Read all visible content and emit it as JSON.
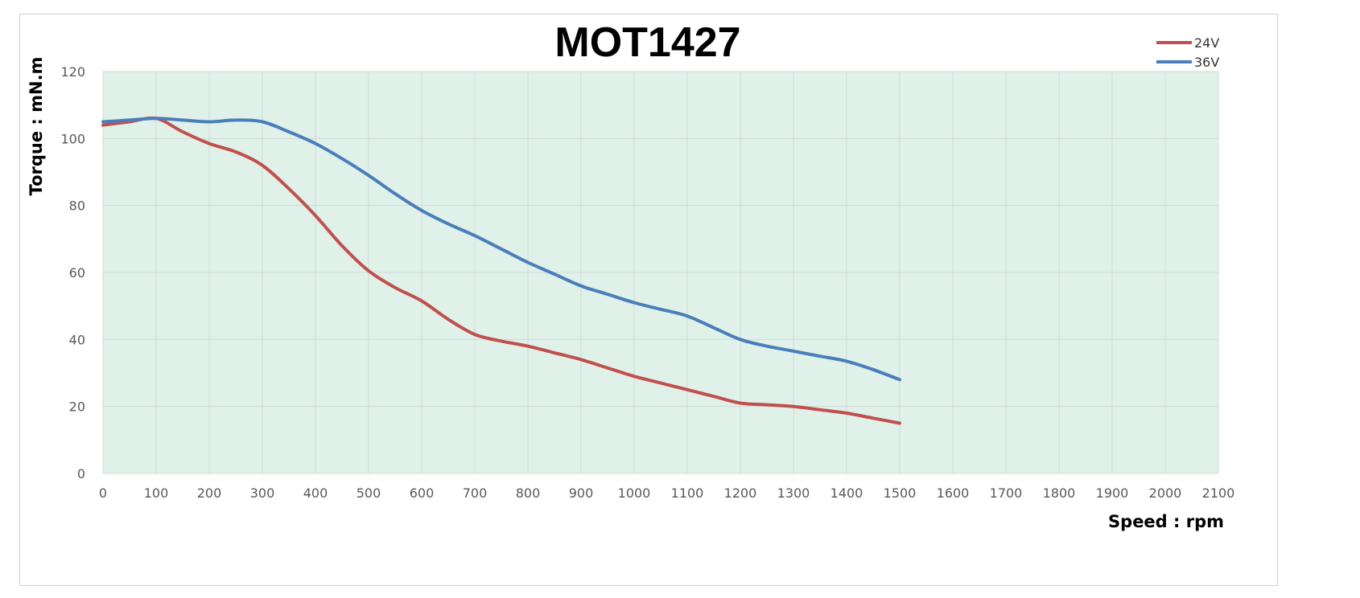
{
  "chart_data": {
    "type": "line",
    "title": "MOT1427",
    "xlabel": "Speed : rpm",
    "ylabel": "Torque : mN.m",
    "xlim": [
      0,
      2100
    ],
    "ylim": [
      0,
      120
    ],
    "x_ticks": [
      0,
      100,
      200,
      300,
      400,
      500,
      600,
      700,
      800,
      900,
      1000,
      1100,
      1200,
      1300,
      1400,
      1500,
      1600,
      1700,
      1800,
      1900,
      2000,
      2100
    ],
    "y_ticks": [
      0,
      20,
      40,
      60,
      80,
      100,
      120
    ],
    "grid": true,
    "legend_position": "top-right",
    "plot_background": "#e0f1ea",
    "series": [
      {
        "name": "24V",
        "color": "#c0504d",
        "points": [
          [
            0,
            104
          ],
          [
            50,
            105
          ],
          [
            100,
            106
          ],
          [
            150,
            102
          ],
          [
            200,
            98.5
          ],
          [
            250,
            96
          ],
          [
            300,
            92
          ],
          [
            350,
            85
          ],
          [
            400,
            77
          ],
          [
            450,
            68
          ],
          [
            500,
            60.5
          ],
          [
            550,
            55.5
          ],
          [
            600,
            51.5
          ],
          [
            650,
            46
          ],
          [
            700,
            41.5
          ],
          [
            750,
            39.5
          ],
          [
            800,
            38
          ],
          [
            850,
            36
          ],
          [
            900,
            34
          ],
          [
            950,
            31.5
          ],
          [
            1000,
            29
          ],
          [
            1050,
            27
          ],
          [
            1100,
            25
          ],
          [
            1150,
            23
          ],
          [
            1200,
            21
          ],
          [
            1250,
            20.5
          ],
          [
            1300,
            20
          ],
          [
            1350,
            19
          ],
          [
            1400,
            18
          ],
          [
            1450,
            16.5
          ],
          [
            1500,
            15
          ]
        ]
      },
      {
        "name": "36V",
        "color": "#4a7ebb",
        "points": [
          [
            0,
            105
          ],
          [
            50,
            105.5
          ],
          [
            100,
            106
          ],
          [
            150,
            105.5
          ],
          [
            200,
            105
          ],
          [
            250,
            105.5
          ],
          [
            300,
            105
          ],
          [
            350,
            102
          ],
          [
            400,
            98.5
          ],
          [
            450,
            94
          ],
          [
            500,
            89
          ],
          [
            550,
            83.5
          ],
          [
            600,
            78.5
          ],
          [
            650,
            74.5
          ],
          [
            700,
            71
          ],
          [
            750,
            67
          ],
          [
            800,
            63
          ],
          [
            850,
            59.5
          ],
          [
            900,
            56
          ],
          [
            950,
            53.5
          ],
          [
            1000,
            51
          ],
          [
            1050,
            49
          ],
          [
            1100,
            47
          ],
          [
            1150,
            43.5
          ],
          [
            1200,
            40
          ],
          [
            1250,
            38
          ],
          [
            1300,
            36.5
          ],
          [
            1350,
            35
          ],
          [
            1400,
            33.5
          ],
          [
            1450,
            31
          ],
          [
            1500,
            28
          ]
        ]
      }
    ]
  }
}
